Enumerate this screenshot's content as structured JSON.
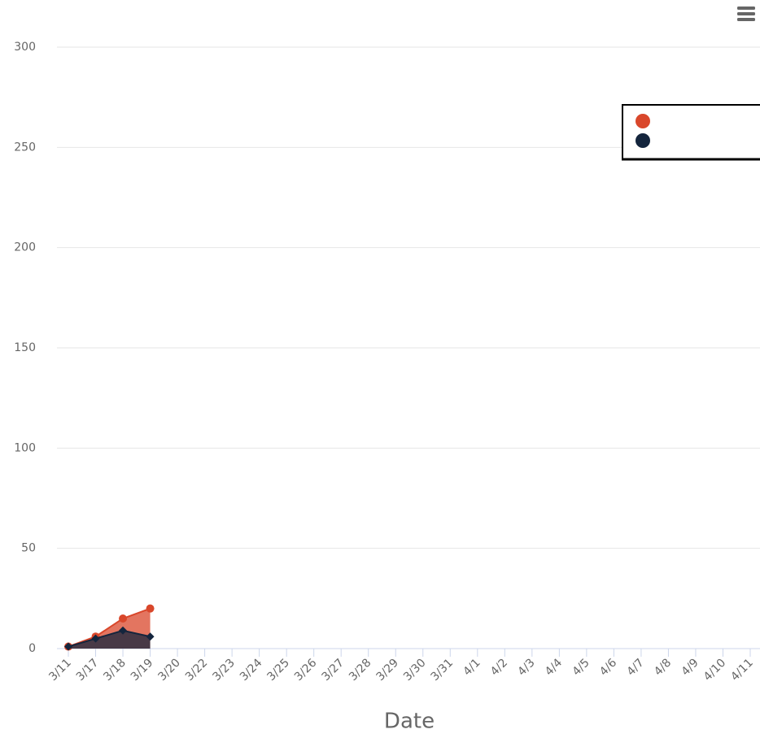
{
  "chart_data": {
    "type": "area",
    "x_label": "Date",
    "categories": [
      "3/11",
      "3/17",
      "3/18",
      "3/19",
      "3/20",
      "3/22",
      "3/23",
      "3/24",
      "3/25",
      "3/26",
      "3/27",
      "3/28",
      "3/29",
      "3/30",
      "3/31",
      "4/1",
      "4/2",
      "4/3",
      "4/4",
      "4/5",
      "4/6",
      "4/7",
      "4/8",
      "4/9",
      "4/10",
      "4/11"
    ],
    "series": [
      {
        "color": "#d9472b",
        "marker": "circle",
        "values": [
          1,
          6,
          15,
          20,
          null,
          null,
          null,
          null,
          null,
          null,
          null,
          null,
          null,
          null,
          null,
          null,
          null,
          null,
          null,
          null,
          null,
          null,
          null,
          null,
          null,
          null
        ]
      },
      {
        "color": "#14253d",
        "marker": "diamond",
        "values": [
          1,
          5,
          9,
          6,
          null,
          null,
          null,
          null,
          null,
          null,
          null,
          null,
          null,
          null,
          null,
          null,
          null,
          null,
          null,
          null,
          null,
          null,
          null,
          null,
          null,
          null
        ]
      }
    ],
    "ylim": [
      0,
      300
    ],
    "yticks": [
      0,
      50,
      100,
      150,
      200,
      250,
      300
    ],
    "grid": true
  }
}
